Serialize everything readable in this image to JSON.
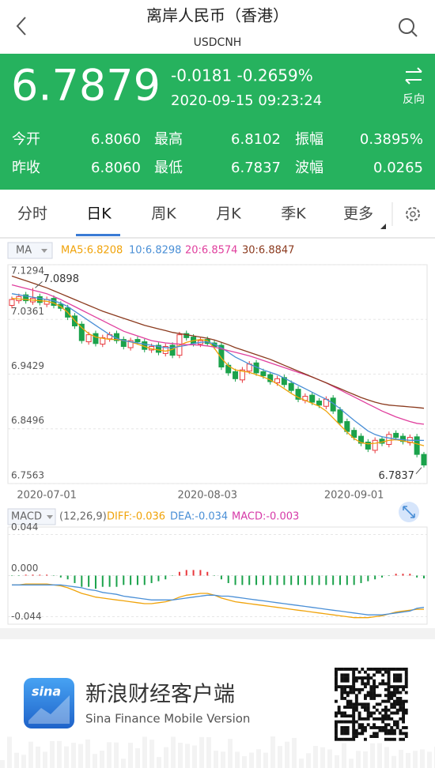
{
  "header": {
    "title": "离岸人民币（香港）",
    "symbol": "USDCNH"
  },
  "quote": {
    "price": "6.7879",
    "change": "-0.0181 -0.2659%",
    "time": "2020-09-15 09:23:24",
    "reverse": "反向"
  },
  "stats": [
    [
      {
        "label": "今开",
        "value": "6.8060"
      },
      {
        "label": "最高",
        "value": "6.8102"
      },
      {
        "label": "振幅",
        "value": "0.3895%"
      }
    ],
    [
      {
        "label": "昨收",
        "value": "6.8060"
      },
      {
        "label": "最低",
        "value": "6.7837"
      },
      {
        "label": "波幅",
        "value": "0.0265"
      }
    ]
  ],
  "tabs": [
    "分时",
    "日K",
    "周K",
    "月K",
    "季K",
    "更多"
  ],
  "footer": {
    "logo": "sina",
    "title": "新浪财经客户端",
    "subtitle": "Sina Finance Mobile Version"
  },
  "chart_data": [
    {
      "type": "candlestick",
      "indicator": "MA",
      "up_color": "#e8383d",
      "down_color": "#1ba24b",
      "categories": [
        null,
        null,
        null,
        null,
        null,
        "2020-07-01",
        null,
        null,
        null,
        null,
        null,
        null,
        null,
        null,
        null,
        null,
        null,
        null,
        null,
        null,
        null,
        null,
        null,
        null,
        null,
        null,
        null,
        null,
        "2020-08-03",
        null,
        null,
        null,
        null,
        null,
        null,
        null,
        null,
        null,
        null,
        null,
        null,
        null,
        null,
        null,
        null,
        null,
        null,
        null,
        null,
        "2020-09-01",
        null,
        null,
        null,
        null,
        null,
        null,
        null,
        null,
        null,
        null
      ],
      "open": [
        7.06,
        7.068,
        7.078,
        7.066,
        7.075,
        7.062,
        7.072,
        7.062,
        7.056,
        7.042,
        7.028,
        6.998,
        7.012,
        6.994,
        7.003,
        7.012,
        7.002,
        6.988,
        7.002,
        6.998,
        6.984,
        6.992,
        6.978,
        6.992,
        6.975,
        7.012,
        7.006,
        6.994,
        7.002,
        6.996,
        6.992,
        6.958,
        6.947,
        6.933,
        6.948,
        6.962,
        6.947,
        6.942,
        6.928,
        6.937,
        6.927,
        6.917,
        6.898,
        6.907,
        6.897,
        6.888,
        6.902,
        6.882,
        6.862,
        6.847,
        6.837,
        6.827,
        6.813,
        6.832,
        6.823,
        6.842,
        6.837,
        6.826,
        6.836,
        6.806
      ],
      "high": [
        7.075,
        7.08,
        7.083,
        7.0898,
        7.08,
        7.075,
        7.077,
        7.067,
        7.061,
        7.047,
        7.033,
        7.015,
        7.017,
        7.01,
        7.015,
        7.017,
        7.007,
        7.005,
        7.007,
        7.003,
        6.995,
        6.997,
        6.995,
        6.997,
        7.015,
        7.017,
        7.011,
        7.005,
        7.007,
        7.001,
        6.997,
        6.963,
        6.952,
        6.955,
        6.965,
        6.967,
        6.952,
        6.947,
        6.94,
        6.942,
        6.932,
        6.922,
        6.91,
        6.912,
        6.902,
        6.905,
        6.907,
        6.887,
        6.867,
        6.852,
        6.842,
        6.832,
        6.835,
        6.837,
        6.845,
        6.847,
        6.842,
        6.84,
        6.841,
        6.8102
      ],
      "low": [
        7.055,
        7.063,
        7.063,
        7.061,
        7.06,
        7.057,
        7.055,
        7.05,
        7.035,
        7.02,
        6.995,
        6.993,
        6.99,
        6.989,
        6.998,
        6.995,
        6.985,
        6.983,
        6.993,
        6.98,
        6.979,
        6.975,
        6.973,
        6.97,
        6.97,
        7.0,
        6.99,
        6.989,
        6.99,
        6.985,
        6.95,
        6.94,
        6.93,
        6.928,
        6.943,
        6.94,
        6.935,
        6.925,
        6.923,
        6.92,
        6.91,
        6.895,
        6.893,
        6.89,
        6.885,
        6.883,
        6.875,
        6.855,
        6.84,
        6.83,
        6.82,
        6.81,
        6.808,
        6.82,
        6.818,
        6.83,
        6.823,
        6.821,
        6.801,
        6.7837
      ],
      "close": [
        7.07,
        7.075,
        7.068,
        7.072,
        7.065,
        7.07,
        7.06,
        7.055,
        7.04,
        7.025,
        7.0,
        7.01,
        6.995,
        7.005,
        7.01,
        7.0,
        6.99,
        7.0,
        6.998,
        6.985,
        6.99,
        6.98,
        6.99,
        6.975,
        7.01,
        7.005,
        6.995,
        7.0,
        6.995,
        6.99,
        6.955,
        6.945,
        6.935,
        6.95,
        6.96,
        6.945,
        6.94,
        6.93,
        6.935,
        6.925,
        6.915,
        6.9,
        6.905,
        6.895,
        6.89,
        6.9,
        6.88,
        6.86,
        6.845,
        6.835,
        6.825,
        6.815,
        6.83,
        6.825,
        6.84,
        6.835,
        6.828,
        6.835,
        6.806,
        6.7879
      ],
      "series": [
        {
          "name": "MA5:6.8208",
          "color": "#f0a30a",
          "values": [
            7.072,
            7.071,
            7.07,
            7.069,
            7.068,
            7.067,
            7.064,
            7.058,
            7.048,
            7.034,
            7.022,
            7.012,
            7.006,
            7.004,
            7.002,
            7.002,
            7.0,
            6.998,
            6.994,
            6.99,
            6.986,
            6.984,
            6.982,
            6.985,
            6.992,
            6.997,
            7.0,
            7.002,
            7.0,
            6.987,
            6.97,
            6.957,
            6.95,
            6.948,
            6.946,
            6.942,
            6.938,
            6.933,
            6.926,
            6.918,
            6.91,
            6.903,
            6.898,
            6.893,
            6.888,
            6.88,
            6.868,
            6.856,
            6.844,
            6.833,
            6.826,
            6.824,
            6.825,
            6.827,
            6.83,
            6.831,
            6.829,
            6.827,
            6.824,
            6.8208
          ]
        },
        {
          "name": "10:6.8298",
          "color": "#4a8fd6",
          "values": [
            7.08,
            7.078,
            7.076,
            7.074,
            7.072,
            7.07,
            7.068,
            7.064,
            7.058,
            7.05,
            7.042,
            7.034,
            7.026,
            7.018,
            7.01,
            7.004,
            7.0,
            6.998,
            6.996,
            6.994,
            6.992,
            6.99,
            6.988,
            6.988,
            6.99,
            6.992,
            6.995,
            6.997,
            6.998,
            6.994,
            6.988,
            6.98,
            6.972,
            6.966,
            6.96,
            6.955,
            6.95,
            6.946,
            6.942,
            6.936,
            6.93,
            6.924,
            6.918,
            6.912,
            6.906,
            6.9,
            6.893,
            6.884,
            6.874,
            6.864,
            6.855,
            6.846,
            6.84,
            6.836,
            6.834,
            6.832,
            6.831,
            6.83,
            6.83,
            6.8298
          ]
        },
        {
          "name": "20:6.8574",
          "color": "#e0409e",
          "values": [
            7.095,
            7.092,
            7.089,
            7.086,
            7.083,
            7.08,
            7.075,
            7.07,
            7.064,
            7.058,
            7.052,
            7.046,
            7.04,
            7.034,
            7.028,
            7.022,
            7.016,
            7.012,
            7.008,
            7.004,
            7.0,
            6.998,
            6.996,
            6.995,
            6.994,
            6.993,
            6.993,
            6.992,
            6.991,
            6.989,
            6.986,
            6.983,
            6.98,
            6.977,
            6.974,
            6.97,
            6.966,
            6.962,
            6.958,
            6.954,
            6.95,
            6.946,
            6.942,
            6.938,
            6.933,
            6.928,
            6.922,
            6.916,
            6.91,
            6.904,
            6.898,
            6.892,
            6.886,
            6.88,
            6.875,
            6.87,
            6.866,
            6.862,
            6.859,
            6.8574
          ]
        },
        {
          "name": "30:6.8847",
          "color": "#8b3a1e",
          "values": [
            7.11,
            7.106,
            7.102,
            7.098,
            7.094,
            7.09,
            7.085,
            7.08,
            7.075,
            7.07,
            7.065,
            7.06,
            7.055,
            7.05,
            7.046,
            7.042,
            7.038,
            7.034,
            7.03,
            7.026,
            7.023,
            7.02,
            7.017,
            7.014,
            7.012,
            7.01,
            7.008,
            7.006,
            7.004,
            7.001,
            6.997,
            6.993,
            6.988,
            6.984,
            6.98,
            6.976,
            6.972,
            6.968,
            6.963,
            6.958,
            6.953,
            6.948,
            6.943,
            6.938,
            6.933,
            6.928,
            6.923,
            6.918,
            6.913,
            6.908,
            6.903,
            6.899,
            6.895,
            6.892,
            6.89,
            6.889,
            6.888,
            6.887,
            6.886,
            6.8847
          ]
        }
      ],
      "ylim": [
        6.7563,
        7.1294
      ],
      "yticks": [
        7.1294,
        7.0361,
        6.9429,
        6.8496,
        6.7563
      ],
      "grid": true,
      "annotations": [
        {
          "index": 3,
          "value": 7.0898
        },
        {
          "index": 59,
          "value": 6.7837
        }
      ]
    },
    {
      "type": "macd",
      "indicator": "MACD",
      "params": "(12,26,9)",
      "histogram": {
        "name": "MACD:-0.003",
        "color": "#d63ba8",
        "up_color": "#e8383d",
        "down_color": "#1ba24b",
        "values": [
          0.0,
          0.0,
          0.001,
          0.001,
          0.001,
          0.001,
          0.0,
          -0.002,
          -0.004,
          -0.008,
          -0.012,
          -0.012,
          -0.014,
          -0.012,
          -0.012,
          -0.012,
          -0.01,
          -0.01,
          -0.01,
          -0.01,
          -0.008,
          -0.006,
          -0.004,
          0.0,
          0.004,
          0.006,
          0.006,
          0.006,
          0.004,
          0.0,
          -0.004,
          -0.008,
          -0.01,
          -0.01,
          -0.01,
          -0.01,
          -0.01,
          -0.01,
          -0.01,
          -0.01,
          -0.01,
          -0.01,
          -0.01,
          -0.01,
          -0.01,
          -0.01,
          -0.01,
          -0.01,
          -0.01,
          -0.01,
          -0.008,
          -0.006,
          -0.004,
          -0.002,
          0.0,
          0.002,
          0.002,
          0.002,
          -0.002,
          -0.003
        ]
      },
      "series": [
        {
          "name": "DIFF:-0.036",
          "color": "#f0a30a",
          "values": [
            -0.01,
            -0.01,
            -0.009,
            -0.009,
            -0.009,
            -0.009,
            -0.01,
            -0.011,
            -0.013,
            -0.016,
            -0.019,
            -0.021,
            -0.023,
            -0.024,
            -0.025,
            -0.026,
            -0.027,
            -0.028,
            -0.029,
            -0.03,
            -0.03,
            -0.029,
            -0.028,
            -0.026,
            -0.023,
            -0.021,
            -0.02,
            -0.019,
            -0.019,
            -0.021,
            -0.024,
            -0.026,
            -0.028,
            -0.029,
            -0.03,
            -0.031,
            -0.032,
            -0.033,
            -0.034,
            -0.035,
            -0.036,
            -0.037,
            -0.038,
            -0.039,
            -0.04,
            -0.041,
            -0.042,
            -0.043,
            -0.044,
            -0.045,
            -0.045,
            -0.045,
            -0.044,
            -0.043,
            -0.041,
            -0.039,
            -0.038,
            -0.037,
            -0.036,
            -0.036
          ]
        },
        {
          "name": "DEA:-0.034",
          "color": "#4a8fd6",
          "values": [
            -0.01,
            -0.01,
            -0.01,
            -0.01,
            -0.01,
            -0.01,
            -0.01,
            -0.01,
            -0.011,
            -0.012,
            -0.013,
            -0.015,
            -0.016,
            -0.018,
            -0.019,
            -0.02,
            -0.022,
            -0.023,
            -0.024,
            -0.025,
            -0.026,
            -0.026,
            -0.026,
            -0.026,
            -0.025,
            -0.024,
            -0.023,
            -0.022,
            -0.021,
            -0.021,
            -0.022,
            -0.022,
            -0.023,
            -0.024,
            -0.025,
            -0.026,
            -0.027,
            -0.028,
            -0.029,
            -0.03,
            -0.031,
            -0.032,
            -0.033,
            -0.034,
            -0.035,
            -0.036,
            -0.037,
            -0.038,
            -0.039,
            -0.04,
            -0.041,
            -0.042,
            -0.042,
            -0.042,
            -0.041,
            -0.04,
            -0.039,
            -0.038,
            -0.035,
            -0.034
          ]
        }
      ],
      "ylim": [
        -0.052,
        0.052
      ],
      "yticks": [
        0.044,
        {
          "value": 0,
          "label": "0.000"
        },
        -0.044
      ],
      "grid": true
    }
  ]
}
